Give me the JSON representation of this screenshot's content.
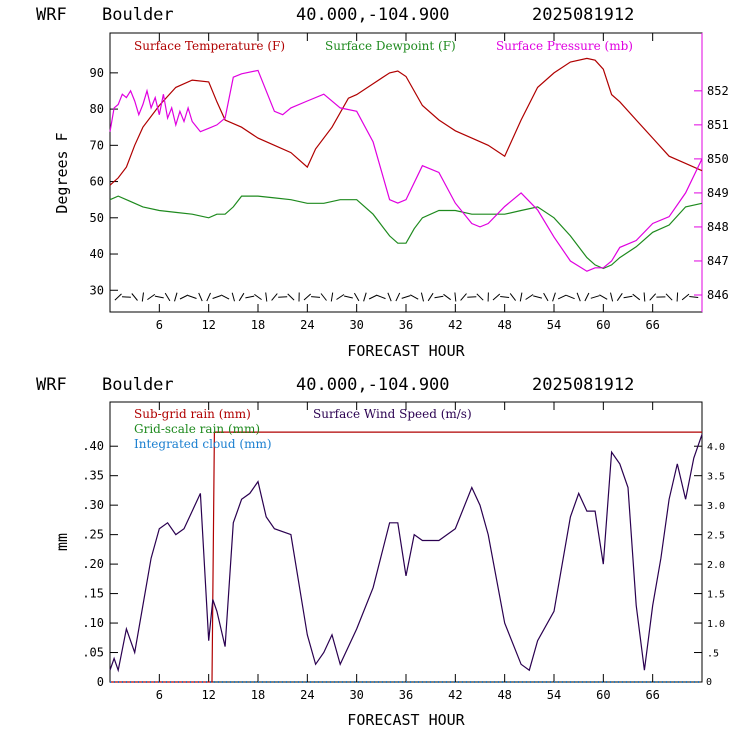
{
  "panels": [
    {
      "header": {
        "model": "WRF",
        "location": "Boulder",
        "coords": "40.000,-104.900",
        "run": "2025081912"
      }
    },
    {
      "header": {
        "model": "WRF",
        "location": "Boulder",
        "coords": "40.000,-104.900",
        "run": "2025081912"
      }
    }
  ],
  "colors": {
    "temperature": "#b00000",
    "dewpoint": "#1e8a1e",
    "pressure": "#e000e0",
    "wind": "#2a0050",
    "cloud": "#1a7fd0",
    "wind_barb": "#000000"
  },
  "chart_data": [
    {
      "type": "line",
      "xlabel": "FORECAST HOUR",
      "ylabel": "Degrees F",
      "xlim": [
        0,
        72
      ],
      "ylim": [
        24,
        101
      ],
      "y2lim": [
        845.5,
        853.7
      ],
      "xticks": [
        6,
        12,
        18,
        24,
        30,
        36,
        42,
        48,
        54,
        60,
        66
      ],
      "yticks": [
        30,
        40,
        50,
        60,
        70,
        80,
        90
      ],
      "y2ticks": [
        846,
        847,
        848,
        849,
        850,
        851,
        852
      ],
      "legend": [
        "Surface Temperature (F)",
        "Surface Dewpoint (F)",
        "Surface Pressure (mb)"
      ],
      "wind_barbs": "bottom row, 1 per forecast hour",
      "series": [
        {
          "name": "Surface Temperature (F)",
          "axis": "left",
          "x": [
            0,
            1,
            2,
            3,
            4,
            6,
            8,
            10,
            12,
            13,
            14,
            16,
            18,
            20,
            22,
            24,
            25,
            27,
            29,
            30,
            32,
            34,
            35,
            36,
            38,
            40,
            42,
            44,
            46,
            48,
            50,
            52,
            54,
            56,
            58,
            59,
            60,
            61,
            62,
            64,
            66,
            68,
            70,
            72
          ],
          "values": [
            59,
            61,
            64,
            70,
            75,
            81,
            86,
            88,
            87.5,
            82,
            77,
            75,
            72,
            70,
            68,
            64,
            69,
            75,
            83,
            84,
            87,
            90,
            90.5,
            89,
            81,
            77,
            74,
            72,
            70,
            67,
            77,
            86,
            90,
            93,
            94,
            93.5,
            91,
            84,
            82,
            77,
            72,
            67,
            65,
            63
          ]
        },
        {
          "name": "Surface Dewpoint (F)",
          "axis": "left",
          "x": [
            0,
            1,
            2,
            3,
            4,
            6,
            8,
            10,
            12,
            13,
            14,
            15,
            16,
            18,
            20,
            22,
            24,
            26,
            28,
            30,
            32,
            34,
            35,
            36,
            37,
            38,
            40,
            42,
            44,
            46,
            48,
            50,
            52,
            54,
            56,
            58,
            59,
            60,
            61,
            62,
            64,
            66,
            68,
            70,
            72
          ],
          "values": [
            55,
            56,
            55,
            54,
            53,
            52,
            51.5,
            51,
            50,
            51,
            51,
            53,
            56,
            56,
            55.5,
            55,
            54,
            54,
            55,
            55,
            51,
            45,
            43,
            43,
            47,
            50,
            52,
            52,
            51,
            51,
            51,
            52,
            53,
            50,
            45,
            39,
            37,
            36,
            37,
            39,
            42,
            46,
            48,
            53,
            54
          ]
        },
        {
          "name": "Surface Pressure (mb)",
          "axis": "right",
          "x": [
            0,
            0.5,
            1,
            1.5,
            2,
            2.5,
            3,
            3.5,
            4,
            4.5,
            5,
            5.5,
            6,
            6.5,
            7,
            7.5,
            8,
            8.5,
            9,
            9.5,
            10,
            11,
            12,
            13,
            14,
            15,
            16,
            18,
            20,
            21,
            22,
            24,
            26,
            28,
            30,
            32,
            34,
            35,
            36,
            38,
            40,
            42,
            44,
            45,
            46,
            48,
            50,
            52,
            54,
            56,
            58,
            59,
            60,
            61,
            62,
            64,
            66,
            68,
            70,
            72
          ],
          "values": [
            850.8,
            851.5,
            851.6,
            851.9,
            851.8,
            852.0,
            851.7,
            851.3,
            851.6,
            852.0,
            851.5,
            851.8,
            851.3,
            851.9,
            851.2,
            851.5,
            851.0,
            851.4,
            851.1,
            851.5,
            851.1,
            850.8,
            850.9,
            851.0,
            851.2,
            852.4,
            852.5,
            852.6,
            851.4,
            851.3,
            851.5,
            851.7,
            851.9,
            851.5,
            851.4,
            850.5,
            848.8,
            848.7,
            848.8,
            849.8,
            849.6,
            848.7,
            848.1,
            848.0,
            848.1,
            848.6,
            849.0,
            848.5,
            847.7,
            847.0,
            846.7,
            846.8,
            846.8,
            847.0,
            847.4,
            847.6,
            848.1,
            848.3,
            849.0,
            850.0
          ]
        }
      ]
    },
    {
      "type": "line",
      "xlabel": "FORECAST HOUR",
      "ylabel": "mm",
      "xlim": [
        0,
        72
      ],
      "ylim": [
        0,
        0.475
      ],
      "y2lim": [
        0,
        4.75
      ],
      "xticks": [
        6,
        12,
        18,
        24,
        30,
        36,
        42,
        48,
        54,
        60,
        66
      ],
      "yticks": [
        ".05",
        ".10",
        ".15",
        ".20",
        ".25",
        ".30",
        ".35",
        ".40"
      ],
      "y2ticks": [
        ".5",
        "1.0",
        "1.5",
        "2.0",
        "2.5",
        "3.0",
        "3.5",
        "4.0"
      ],
      "y_zero_label": "0",
      "legend": [
        "Sub-grid rain (mm)",
        "Surface Wind Speed (m/s)",
        "Grid-scale rain (mm)",
        "Integrated cloud (mm)"
      ],
      "series": [
        {
          "name": "Sub-grid rain (mm)",
          "axis": "left",
          "x": [
            0,
            12.4,
            12.7,
            72
          ],
          "values": [
            0,
            0,
            0.424,
            0.424
          ]
        },
        {
          "name": "Surface Wind Speed (m/s)",
          "axis": "right",
          "x": [
            0,
            0.5,
            1,
            2,
            3,
            4,
            5,
            6,
            7,
            8,
            9,
            10,
            11,
            12,
            12.5,
            13,
            14,
            15,
            16,
            17,
            18,
            19,
            20,
            22,
            24,
            25,
            26,
            27,
            28,
            30,
            32,
            34,
            35,
            36,
            37,
            38,
            40,
            42,
            44,
            45,
            46,
            48,
            50,
            51,
            52,
            54,
            56,
            57,
            58,
            59,
            60,
            61,
            62,
            63,
            64,
            65,
            66,
            67,
            68,
            69,
            70,
            71,
            72
          ],
          "values": [
            0.2,
            0.4,
            0.2,
            0.9,
            0.5,
            1.3,
            2.1,
            2.6,
            2.7,
            2.5,
            2.6,
            2.9,
            3.2,
            0.7,
            1.4,
            1.2,
            0.6,
            2.7,
            3.1,
            3.2,
            3.4,
            2.8,
            2.6,
            2.5,
            0.8,
            0.3,
            0.5,
            0.8,
            0.3,
            0.9,
            1.6,
            2.7,
            2.7,
            1.8,
            2.5,
            2.4,
            2.4,
            2.6,
            3.3,
            3.0,
            2.5,
            1.0,
            0.3,
            0.2,
            0.7,
            1.2,
            2.8,
            3.2,
            2.9,
            2.9,
            2.0,
            3.9,
            3.7,
            3.3,
            1.3,
            0.2,
            1.3,
            2.1,
            3.1,
            3.7,
            3.1,
            3.8,
            4.2
          ]
        },
        {
          "name": "Integrated cloud (mm)",
          "axis": "left",
          "x": [
            0,
            72
          ],
          "values": [
            0,
            0
          ]
        }
      ]
    }
  ]
}
